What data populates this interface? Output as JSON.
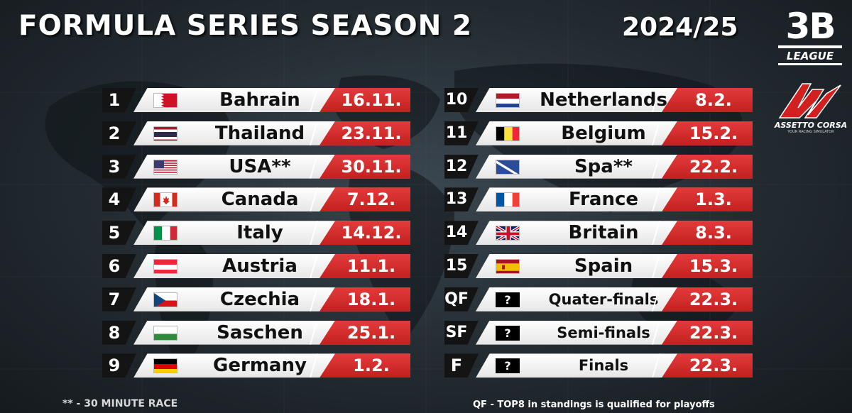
{
  "header": {
    "title": "FORMULA SERIES SEASON 2",
    "season": "2024/25"
  },
  "logos": {
    "league_mark": "3B",
    "league_text": "LEAGUE",
    "ac_text": "ASSETTO CORSA",
    "ac_tagline": "YOUR RACING SIMULATOR"
  },
  "races_left": [
    {
      "num": "1",
      "flag": "bahrain",
      "name": "Bahrain",
      "date": "16.11."
    },
    {
      "num": "2",
      "flag": "thailand",
      "name": "Thailand",
      "date": "23.11."
    },
    {
      "num": "3",
      "flag": "usa",
      "name": "USA**",
      "date": "30.11."
    },
    {
      "num": "4",
      "flag": "canada",
      "name": "Canada",
      "date": "7.12."
    },
    {
      "num": "5",
      "flag": "italy",
      "name": "Italy",
      "date": "14.12."
    },
    {
      "num": "6",
      "flag": "austria",
      "name": "Austria",
      "date": "11.1."
    },
    {
      "num": "7",
      "flag": "czechia",
      "name": "Czechia",
      "date": "18.1."
    },
    {
      "num": "8",
      "flag": "saxony",
      "name": "Saschen",
      "date": "25.1."
    },
    {
      "num": "9",
      "flag": "germany",
      "name": "Germany",
      "date": "1.2."
    }
  ],
  "races_right": [
    {
      "num": "10",
      "flag": "netherlands",
      "name": "Netherlands",
      "date": "8.2."
    },
    {
      "num": "11",
      "flag": "belgium",
      "name": "Belgium",
      "date": "15.2."
    },
    {
      "num": "12",
      "flag": "spa",
      "name": "Spa**",
      "date": "22.2."
    },
    {
      "num": "13",
      "flag": "france",
      "name": "France",
      "date": "1.3."
    },
    {
      "num": "14",
      "flag": "britain",
      "name": "Britain",
      "date": "8.3."
    },
    {
      "num": "15",
      "flag": "spain",
      "name": "Spain",
      "date": "15.3."
    },
    {
      "num": "QF",
      "flag": "question",
      "flag_text": "?",
      "name": "Quater-finals",
      "date": "22.3."
    },
    {
      "num": "SF",
      "flag": "question",
      "flag_text": "?",
      "name": "Semi-finals",
      "date": "22.3."
    },
    {
      "num": "F",
      "flag": "question",
      "flag_text": "?",
      "name": "Finals",
      "date": "22.3."
    }
  ],
  "footer": {
    "note_left": "** - 30 MINUTE RACE",
    "note_right": "QF - TOP8 in standings is qualified for playoffs"
  }
}
